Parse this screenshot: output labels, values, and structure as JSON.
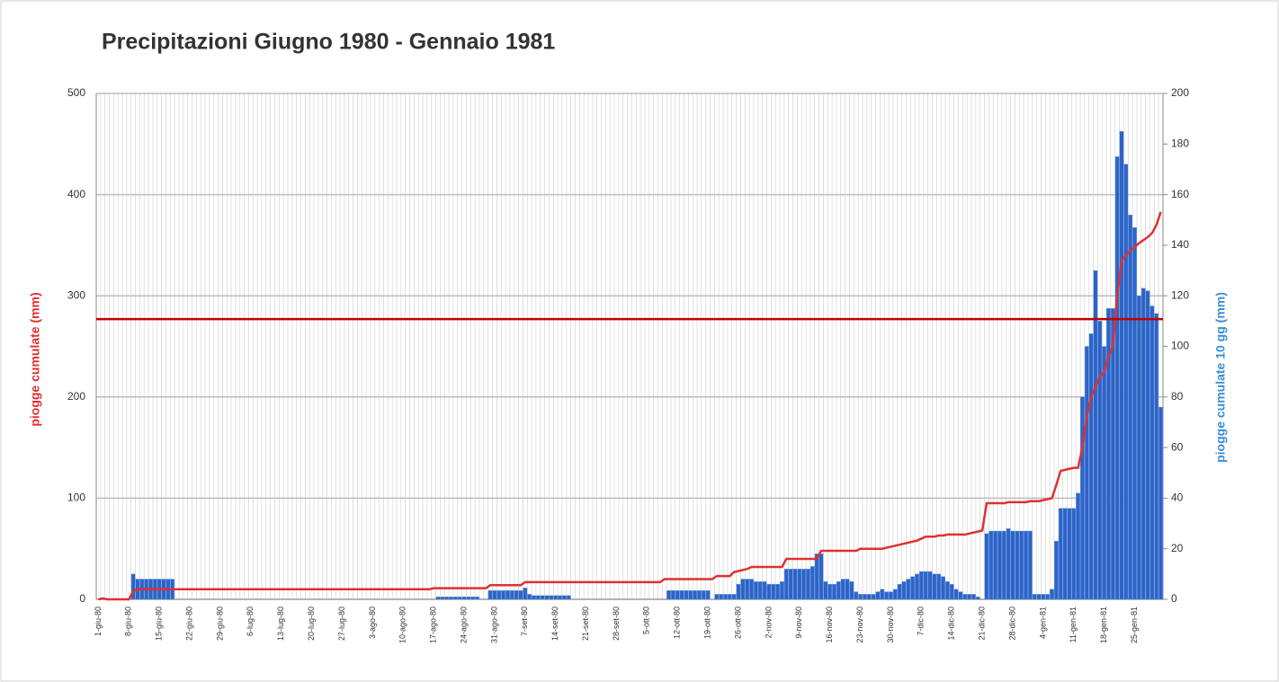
{
  "chart_data": {
    "type": "bar-line",
    "title": "Precipitazioni Giugno 1980 - Gennaio 1981",
    "ylabel": "piogge cumulate (mm)",
    "y2label": "piogge cumulate 10 gg (mm)",
    "categories": [
      "1-giu-80",
      null,
      null,
      null,
      null,
      null,
      null,
      "8-giu-80",
      null,
      null,
      null,
      null,
      null,
      null,
      "15-giu-80",
      null,
      null,
      null,
      null,
      null,
      null,
      "22-giu-80",
      null,
      null,
      null,
      null,
      null,
      null,
      "29-giu-80",
      null,
      null,
      null,
      null,
      null,
      null,
      "6-lug-80",
      null,
      null,
      null,
      null,
      null,
      null,
      "13-lug-80",
      null,
      null,
      null,
      null,
      null,
      null,
      "20-lug-80",
      null,
      null,
      null,
      null,
      null,
      null,
      "27-lug-80",
      null,
      null,
      null,
      null,
      null,
      null,
      "3-ago-80",
      null,
      null,
      null,
      null,
      null,
      null,
      "10-ago-80",
      null,
      null,
      null,
      null,
      null,
      null,
      "17-ago-80",
      null,
      null,
      null,
      null,
      null,
      null,
      "24-ago-80",
      null,
      null,
      null,
      null,
      null,
      null,
      "31-ago-80",
      null,
      null,
      null,
      null,
      null,
      null,
      "7-set-80",
      null,
      null,
      null,
      null,
      null,
      null,
      "14-set-80",
      null,
      null,
      null,
      null,
      null,
      null,
      "21-set-80",
      null,
      null,
      null,
      null,
      null,
      null,
      "28-set-80",
      null,
      null,
      null,
      null,
      null,
      null,
      "5-ott-80",
      null,
      null,
      null,
      null,
      null,
      null,
      "12-ott-80",
      null,
      null,
      null,
      null,
      null,
      null,
      "19-ott-80",
      null,
      null,
      null,
      null,
      null,
      null,
      "26-ott-80",
      null,
      null,
      null,
      null,
      null,
      null,
      "2-nov-80",
      null,
      null,
      null,
      null,
      null,
      null,
      "9-nov-80",
      null,
      null,
      null,
      null,
      null,
      null,
      "16-nov-80",
      null,
      null,
      null,
      null,
      null,
      null,
      "23-nov-80",
      null,
      null,
      null,
      null,
      null,
      null,
      "30-nov-80",
      null,
      null,
      null,
      null,
      null,
      null,
      "7-dic-80",
      null,
      null,
      null,
      null,
      null,
      null,
      "14-dic-80",
      null,
      null,
      null,
      null,
      null,
      null,
      "21-dic-80",
      null,
      null,
      null,
      null,
      null,
      null,
      "28-dic-80",
      null,
      null,
      null,
      null,
      null,
      null,
      "4-gen-81",
      null,
      null,
      null,
      null,
      null,
      null,
      "11-gen-81",
      null,
      null,
      null,
      null,
      null,
      null,
      "18-gen-81",
      null,
      null,
      null,
      null,
      null,
      null,
      "25-gen-81",
      null,
      null,
      null,
      null,
      null,
      null
    ],
    "series": [
      {
        "type": "bar",
        "axis": "y2",
        "color": "#2f62c9",
        "values": [
          0,
          0,
          0,
          0,
          0,
          0,
          0,
          0,
          10,
          8,
          8,
          8,
          8,
          8,
          8,
          8,
          8,
          8,
          0,
          0,
          0,
          0,
          0,
          0,
          0,
          0,
          0,
          0,
          0,
          0,
          0,
          0,
          0,
          0,
          0,
          0,
          0,
          0,
          0,
          0,
          0,
          0,
          0,
          0,
          0,
          0,
          0,
          0,
          0,
          0,
          0,
          0,
          0,
          0,
          0,
          0,
          0,
          0,
          0,
          0,
          0,
          0,
          0,
          0,
          0,
          0,
          0,
          0,
          0,
          0,
          0,
          0,
          0,
          0,
          0,
          0,
          0,
          0,
          1,
          1,
          1,
          1,
          1,
          1,
          1,
          1,
          1,
          1,
          0,
          0,
          3.5,
          3.5,
          3.5,
          3.5,
          3.5,
          3.5,
          3.5,
          3.5,
          4.5,
          2,
          1.5,
          1.5,
          1.5,
          1.5,
          1.5,
          1.5,
          1.5,
          1.5,
          1.5,
          0,
          0,
          0,
          0,
          0,
          0,
          0,
          0,
          0,
          0,
          0,
          0,
          0,
          0,
          0,
          0,
          0,
          0,
          0,
          0,
          0,
          0,
          3.5,
          3.5,
          3.5,
          3.5,
          3.5,
          3.5,
          3.5,
          3.5,
          3.5,
          3.5,
          0,
          2,
          2,
          2,
          2,
          2,
          6,
          8,
          8,
          8,
          7,
          7,
          7,
          6,
          6,
          6,
          7,
          12,
          12,
          12,
          12,
          12,
          12,
          13,
          18,
          18,
          7,
          6,
          6,
          7,
          8,
          8,
          7,
          3,
          2,
          2,
          2,
          2,
          3,
          4,
          3,
          3,
          4,
          6,
          7,
          8,
          9,
          10,
          11,
          11,
          11,
          10,
          10,
          9,
          7,
          6,
          4,
          3,
          2,
          2,
          2,
          1,
          0,
          26,
          27,
          27,
          27,
          27,
          28,
          27,
          27,
          27,
          27,
          27,
          2,
          2,
          2,
          2,
          4,
          23,
          36,
          36,
          36,
          36,
          42,
          80,
          100,
          105,
          130,
          110,
          100,
          115,
          115,
          175,
          185,
          172,
          152,
          147,
          120,
          123,
          122,
          116,
          113,
          76
        ]
      },
      {
        "type": "line",
        "axis": "y",
        "color": "#e03030",
        "values": [
          0,
          1,
          0,
          0,
          0,
          0,
          0,
          0,
          8,
          10,
          10,
          10,
          10,
          10,
          10,
          10,
          10,
          10,
          10,
          10,
          10,
          10,
          10,
          10,
          10,
          10,
          10,
          10,
          10,
          10,
          10,
          10,
          10,
          10,
          10,
          10,
          10,
          10,
          10,
          10,
          10,
          10,
          10,
          10,
          10,
          10,
          10,
          10,
          10,
          10,
          10,
          10,
          10,
          10,
          10,
          10,
          10,
          10,
          10,
          10,
          10,
          10,
          10,
          10,
          10,
          10,
          10,
          10,
          10,
          10,
          10,
          10,
          10,
          10,
          10,
          10,
          10,
          11,
          11,
          11,
          11,
          11,
          11,
          11,
          11,
          11,
          11,
          11,
          11,
          11,
          14,
          14,
          14,
          14,
          14,
          14,
          14,
          14,
          17,
          17,
          17,
          17,
          17,
          17,
          17,
          17,
          17,
          17,
          17,
          17,
          17,
          17,
          17,
          17,
          17,
          17,
          17,
          17,
          17,
          17,
          17,
          17,
          17,
          17,
          17,
          17,
          17,
          17,
          17,
          17,
          20,
          20,
          20,
          20,
          20,
          20,
          20,
          20,
          20,
          20,
          20,
          20,
          23,
          23,
          23,
          23,
          27,
          28,
          29,
          30,
          32,
          32,
          32,
          32,
          32,
          32,
          32,
          32,
          40,
          40,
          40,
          40,
          40,
          40,
          40,
          40,
          48,
          48,
          48,
          48,
          48,
          48,
          48,
          48,
          48,
          50,
          50,
          50,
          50,
          50,
          50,
          51,
          52,
          53,
          54,
          55,
          56,
          57,
          58,
          60,
          62,
          62,
          62,
          63,
          63,
          64,
          64,
          64,
          64,
          64,
          65,
          66,
          67,
          68,
          95,
          95,
          95,
          95,
          95,
          96,
          96,
          96,
          96,
          96,
          97,
          97,
          97,
          98,
          99,
          100,
          113,
          127,
          128,
          129,
          130,
          130,
          150,
          180,
          200,
          210,
          220,
          225,
          240,
          250,
          300,
          335,
          340,
          345,
          348,
          352,
          355,
          358,
          362,
          370,
          383
        ]
      }
    ],
    "reference_line": {
      "value": 277,
      "color": "#c00000"
    },
    "ylim": [
      0,
      500
    ],
    "yticks": [
      0,
      100,
      200,
      300,
      400,
      500
    ],
    "y2lim": [
      0,
      200
    ],
    "y2ticks": [
      0,
      20,
      40,
      60,
      80,
      100,
      120,
      140,
      160,
      180,
      200
    ],
    "grid": true
  }
}
